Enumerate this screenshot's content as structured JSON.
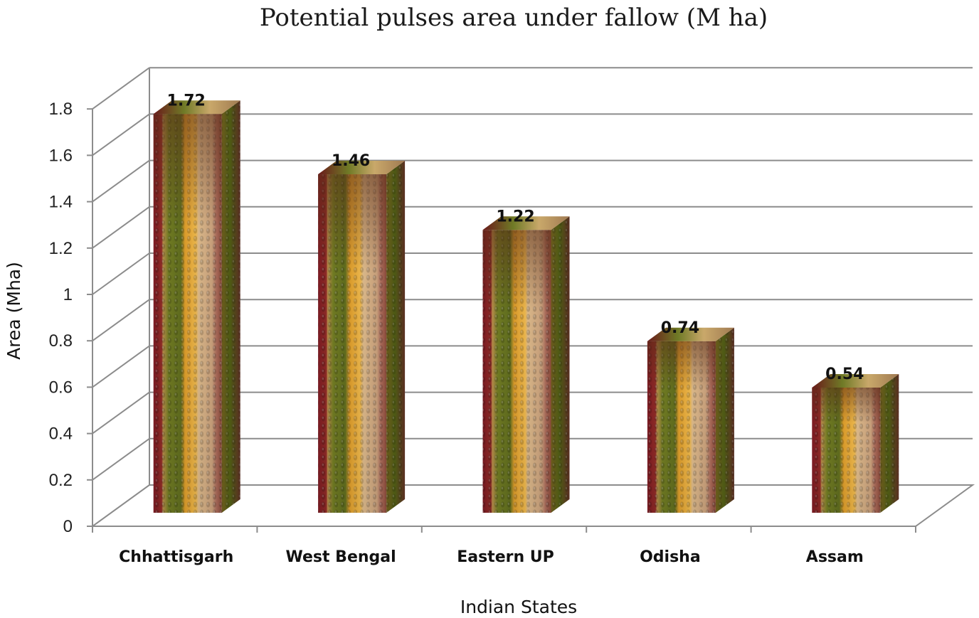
{
  "chart_data": {
    "type": "bar",
    "title": "Potential pulses area under fallow (M ha)",
    "xlabel": "Indian States",
    "ylabel": "Area (Mha)",
    "categories": [
      "Chhattisgarh",
      "West Bengal",
      "Eastern UP",
      "Odisha",
      "Assam"
    ],
    "values": [
      1.72,
      1.46,
      1.22,
      0.74,
      0.54
    ],
    "data_labels": [
      "1.72",
      "1.46",
      "1.22",
      "0.74",
      "0.54"
    ],
    "y_ticks": [
      "0",
      "0.2",
      "0.4",
      "0.6",
      "0.8",
      "1",
      "1.2",
      "1.4",
      "1.6",
      "1.8"
    ],
    "ylim": [
      0,
      1.8
    ],
    "grid": true,
    "style": "3d-column with pulse-grain texture"
  }
}
